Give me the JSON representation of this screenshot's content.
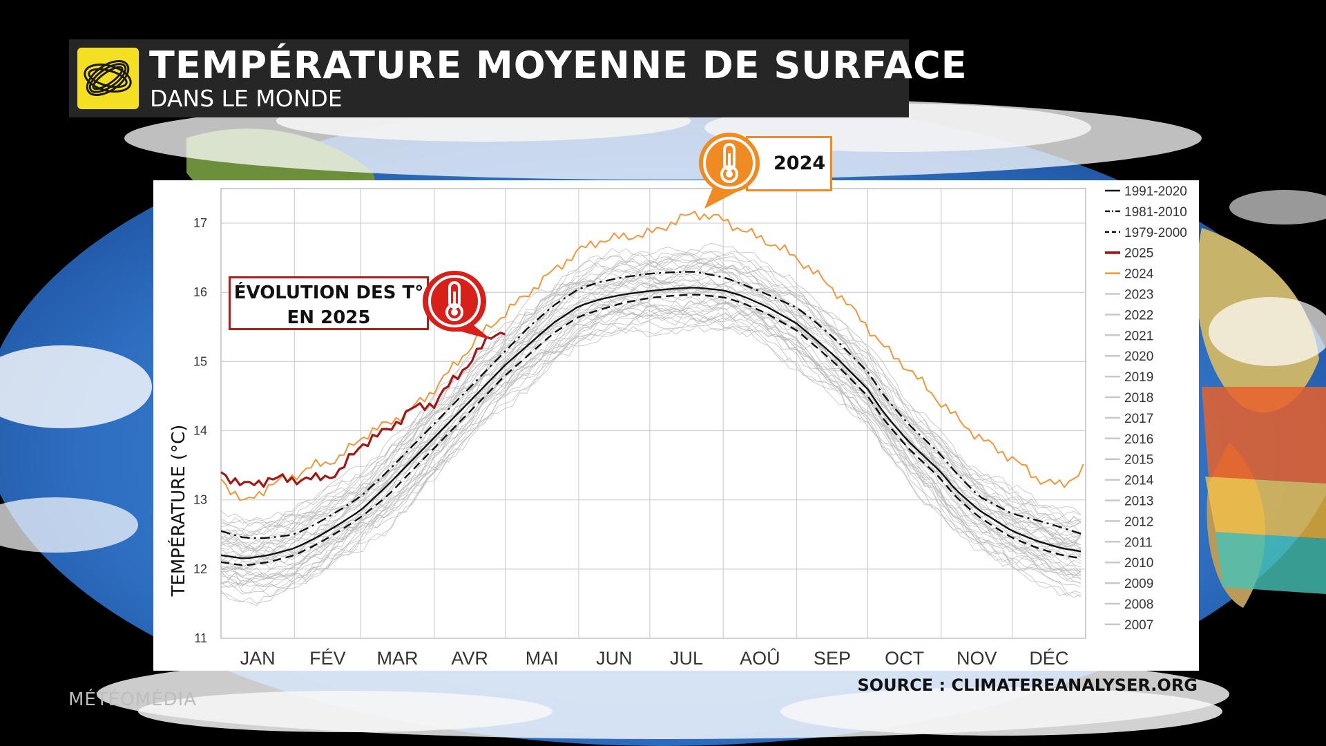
{
  "header": {
    "title": "TEMPÉRATURE MOYENNE DE SURFACE",
    "subtitle": "DANS LE MONDE",
    "logo": "swirl-logo-icon"
  },
  "callouts": {
    "year_2025": {
      "text_line1": "ÉVOLUTION DES T°",
      "text_line2": "EN 2025",
      "icon": "thermometer-icon",
      "color": "#d8201b"
    },
    "year_2024": {
      "text": "2024",
      "icon": "thermometer-icon",
      "color": "#f08a22"
    }
  },
  "footer": {
    "watermark": "MÉTÉOMÉDIA",
    "source": "SOURCE : CLIMATEREANALYSER.ORG"
  },
  "chart_data": {
    "type": "line",
    "ylabel": "TEMPÉRATURE (°C)",
    "xlabel": "",
    "ylim": [
      11,
      17.5
    ],
    "xlim": [
      0,
      365
    ],
    "yticks": [
      11,
      12,
      13,
      14,
      15,
      16,
      17
    ],
    "month_labels": [
      "JAN",
      "FÉV",
      "MAR",
      "AVR",
      "MAI",
      "JUN",
      "JUL",
      "AOÛ",
      "SEP",
      "OCT",
      "NOV",
      "DÉC"
    ],
    "grid": true,
    "legend_position": "right",
    "legend": [
      {
        "label": "1991-2020",
        "style": "solid",
        "color": "#111111"
      },
      {
        "label": "1981-2010",
        "style": "dashdot",
        "color": "#111111"
      },
      {
        "label": "1979-2000",
        "style": "dashed",
        "color": "#111111"
      },
      {
        "label": "2025",
        "style": "solid",
        "color": "#a01818"
      },
      {
        "label": "2024",
        "style": "solid",
        "color": "#f0953a"
      },
      {
        "label": "2023",
        "style": "solid",
        "color": "#c8c8c8"
      },
      {
        "label": "2022",
        "style": "solid",
        "color": "#c8c8c8"
      },
      {
        "label": "2021",
        "style": "solid",
        "color": "#c8c8c8"
      },
      {
        "label": "2020",
        "style": "solid",
        "color": "#c8c8c8"
      },
      {
        "label": "2019",
        "style": "solid",
        "color": "#c8c8c8"
      },
      {
        "label": "2018",
        "style": "solid",
        "color": "#c8c8c8"
      },
      {
        "label": "2017",
        "style": "solid",
        "color": "#c8c8c8"
      },
      {
        "label": "2016",
        "style": "solid",
        "color": "#c8c8c8"
      },
      {
        "label": "2015",
        "style": "solid",
        "color": "#c8c8c8"
      },
      {
        "label": "2014",
        "style": "solid",
        "color": "#c8c8c8"
      },
      {
        "label": "2013",
        "style": "solid",
        "color": "#c8c8c8"
      },
      {
        "label": "2012",
        "style": "solid",
        "color": "#c8c8c8"
      },
      {
        "label": "2011",
        "style": "solid",
        "color": "#c8c8c8"
      },
      {
        "label": "2010",
        "style": "solid",
        "color": "#c8c8c8"
      },
      {
        "label": "2009",
        "style": "solid",
        "color": "#c8c8c8"
      },
      {
        "label": "2008",
        "style": "solid",
        "color": "#c8c8c8"
      },
      {
        "label": "2007",
        "style": "solid",
        "color": "#c8c8c8"
      }
    ],
    "series": [
      {
        "name": "2025",
        "x": [
          0,
          10,
          20,
          31,
          40,
          50,
          59,
          70,
          80,
          90,
          100,
          110,
          115,
          120
        ],
        "y": [
          13.4,
          13.2,
          13.3,
          13.3,
          13.3,
          13.4,
          13.8,
          14.0,
          14.3,
          14.4,
          14.8,
          15.2,
          15.4,
          15.45
        ]
      },
      {
        "name": "2024",
        "x": [
          0,
          10,
          20,
          31,
          40,
          50,
          59,
          70,
          80,
          90,
          100,
          110,
          120,
          130,
          140,
          151,
          160,
          170,
          181,
          190,
          200,
          212,
          220,
          230,
          243,
          250,
          260,
          273,
          280,
          290,
          304,
          310,
          320,
          334,
          345,
          355,
          364
        ],
        "y": [
          13.3,
          12.95,
          13.2,
          13.35,
          13.5,
          13.6,
          13.9,
          14.1,
          14.3,
          14.6,
          15.0,
          15.4,
          15.7,
          16.0,
          16.3,
          16.6,
          16.75,
          16.8,
          16.85,
          17.0,
          17.15,
          17.05,
          16.9,
          16.75,
          16.5,
          16.3,
          16.0,
          15.5,
          15.2,
          14.9,
          14.4,
          14.2,
          13.9,
          13.6,
          13.3,
          13.2,
          13.45
        ]
      },
      {
        "name": "1991-2020",
        "x": [
          0,
          10,
          20,
          31,
          40,
          50,
          59,
          70,
          80,
          90,
          100,
          110,
          120,
          130,
          140,
          151,
          160,
          170,
          181,
          190,
          200,
          212,
          220,
          230,
          243,
          250,
          260,
          273,
          280,
          290,
          304,
          310,
          320,
          334,
          345,
          355,
          364
        ],
        "y": [
          12.2,
          12.15,
          12.2,
          12.3,
          12.45,
          12.65,
          12.85,
          13.2,
          13.55,
          13.9,
          14.25,
          14.6,
          14.95,
          15.25,
          15.55,
          15.8,
          15.9,
          15.97,
          16.02,
          16.05,
          16.07,
          16.03,
          15.95,
          15.8,
          15.55,
          15.35,
          15.05,
          14.6,
          14.25,
          13.85,
          13.4,
          13.15,
          12.85,
          12.55,
          12.4,
          12.3,
          12.25
        ]
      },
      {
        "name": "1981-2010",
        "x": [
          0,
          10,
          20,
          31,
          40,
          50,
          59,
          70,
          80,
          90,
          100,
          110,
          120,
          130,
          140,
          151,
          160,
          170,
          181,
          190,
          200,
          212,
          220,
          230,
          243,
          250,
          260,
          273,
          280,
          290,
          304,
          310,
          320,
          334,
          345,
          355,
          364
        ],
        "y": [
          12.55,
          12.45,
          12.45,
          12.5,
          12.65,
          12.85,
          13.05,
          13.4,
          13.75,
          14.1,
          14.45,
          14.8,
          15.15,
          15.5,
          15.8,
          16.05,
          16.15,
          16.22,
          16.27,
          16.29,
          16.3,
          16.22,
          16.12,
          15.98,
          15.78,
          15.6,
          15.3,
          14.85,
          14.5,
          14.1,
          13.65,
          13.4,
          13.05,
          12.8,
          12.7,
          12.6,
          12.5
        ]
      },
      {
        "name": "1979-2000",
        "x": [
          0,
          10,
          20,
          31,
          40,
          50,
          59,
          70,
          80,
          90,
          100,
          110,
          120,
          130,
          140,
          151,
          160,
          170,
          181,
          190,
          200,
          212,
          220,
          230,
          243,
          250,
          260,
          273,
          280,
          290,
          304,
          310,
          320,
          334,
          345,
          355,
          364
        ],
        "y": [
          12.1,
          12.05,
          12.1,
          12.2,
          12.35,
          12.55,
          12.75,
          13.05,
          13.4,
          13.75,
          14.1,
          14.45,
          14.8,
          15.1,
          15.4,
          15.65,
          15.75,
          15.85,
          15.92,
          15.95,
          15.97,
          15.93,
          15.85,
          15.7,
          15.45,
          15.25,
          14.95,
          14.5,
          14.15,
          13.75,
          13.3,
          13.05,
          12.75,
          12.45,
          12.3,
          12.2,
          12.15
        ]
      }
    ]
  }
}
